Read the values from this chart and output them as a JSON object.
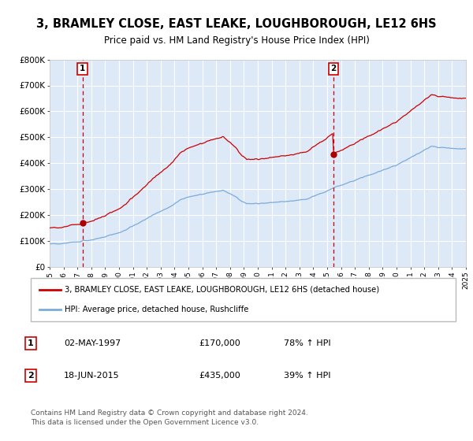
{
  "title": "3, BRAMLEY CLOSE, EAST LEAKE, LOUGHBOROUGH, LE12 6HS",
  "subtitle": "Price paid vs. HM Land Registry's House Price Index (HPI)",
  "red_line_color": "#cc0000",
  "blue_line_color": "#7aabdb",
  "background_color": "#ffffff",
  "plot_bg_color": "#dde9f7",
  "grid_color": "#ffffff",
  "dashed_line_color": "#cc0000",
  "marker_color": "#aa0000",
  "ylim": [
    0,
    800000
  ],
  "yticks": [
    0,
    100000,
    200000,
    300000,
    400000,
    500000,
    600000,
    700000,
    800000
  ],
  "ytick_labels": [
    "£0",
    "£100K",
    "£200K",
    "£300K",
    "£400K",
    "£500K",
    "£600K",
    "£700K",
    "£800K"
  ],
  "sale1_year": 1997.37,
  "sale1_price": 170000,
  "sale1_label": "1",
  "sale2_year": 2015.46,
  "sale2_price": 435000,
  "sale2_label": "2",
  "legend_red": "3, BRAMLEY CLOSE, EAST LEAKE, LOUGHBOROUGH, LE12 6HS (detached house)",
  "legend_blue": "HPI: Average price, detached house, Rushcliffe",
  "table_row1": [
    "1",
    "02-MAY-1997",
    "£170,000",
    "78% ↑ HPI"
  ],
  "table_row2": [
    "2",
    "18-JUN-2015",
    "£435,000",
    "39% ↑ HPI"
  ],
  "footnote": "Contains HM Land Registry data © Crown copyright and database right 2024.\nThis data is licensed under the Open Government Licence v3.0.",
  "xstart": 1995,
  "xend": 2025
}
